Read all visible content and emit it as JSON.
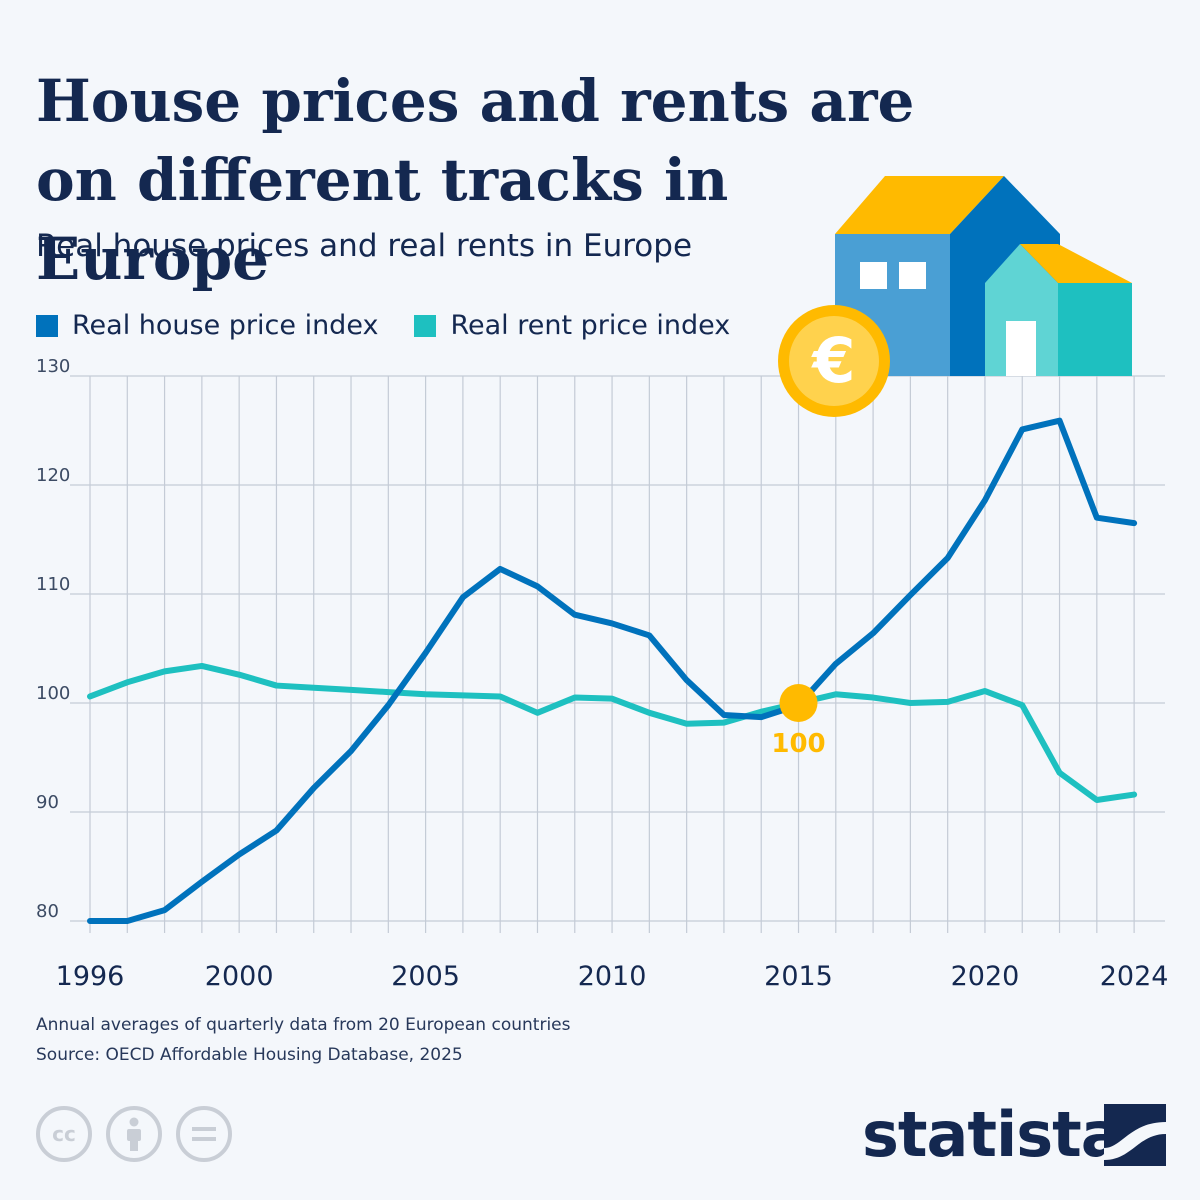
{
  "title": "House prices and rents are on different tracks in Europe",
  "subtitle": "Real house prices and real rents in Europe",
  "legend": [
    {
      "label": "Real house price index",
      "color": "#0072bc"
    },
    {
      "label": "Real rent price index",
      "color": "#1ec0c0"
    }
  ],
  "chart_data": {
    "type": "line",
    "x": [
      1996,
      1997,
      1998,
      1999,
      2000,
      2001,
      2002,
      2003,
      2004,
      2005,
      2006,
      2007,
      2008,
      2009,
      2010,
      2011,
      2012,
      2013,
      2014,
      2015,
      2016,
      2017,
      2018,
      2019,
      2020,
      2021,
      2022,
      2023,
      2024
    ],
    "series": [
      {
        "name": "Real house price index",
        "color": "#0072bc",
        "values": [
          80,
          80,
          81,
          83.6,
          86.1,
          88.3,
          92.2,
          95.6,
          99.8,
          104.6,
          109.7,
          112.3,
          110.7,
          108.1,
          107.3,
          106.2,
          102.1,
          98.9,
          98.7,
          99.8,
          103.6,
          106.4,
          109.9,
          113.3,
          118.6,
          125.1,
          125.9,
          117,
          116.5
        ]
      },
      {
        "name": "Real rent price index",
        "color": "#1ec0c0",
        "values": [
          100.6,
          101.9,
          102.9,
          103.4,
          102.6,
          101.6,
          101.4,
          101.2,
          101.0,
          100.8,
          100.7,
          100.6,
          99.1,
          100.5,
          100.4,
          99.1,
          98.1,
          98.2,
          99.2,
          100.0,
          100.8,
          100.5,
          100.0,
          100.1,
          101.1,
          99.8,
          93.6,
          91.1,
          91.6
        ]
      }
    ],
    "ylim": [
      80,
      130
    ],
    "yticks": [
      "80",
      "90",
      "100",
      "110",
      "120",
      "130"
    ],
    "xticks": [
      "1996",
      "2000",
      "2005",
      "2010",
      "2015",
      "2020",
      "2024"
    ],
    "grid": true,
    "legend_position": "top-left",
    "annotation": {
      "x": 2015,
      "y": 100,
      "label": "100",
      "color": "#ffba00"
    }
  },
  "notes": {
    "line1": "Annual averages of quarterly data from 20 European countries",
    "line2": "Source: OECD Affordable Housing Database, 2025"
  },
  "license_icons": [
    "cc-icon",
    "attribution-icon",
    "no-derivatives-icon"
  ],
  "brand": "statista"
}
